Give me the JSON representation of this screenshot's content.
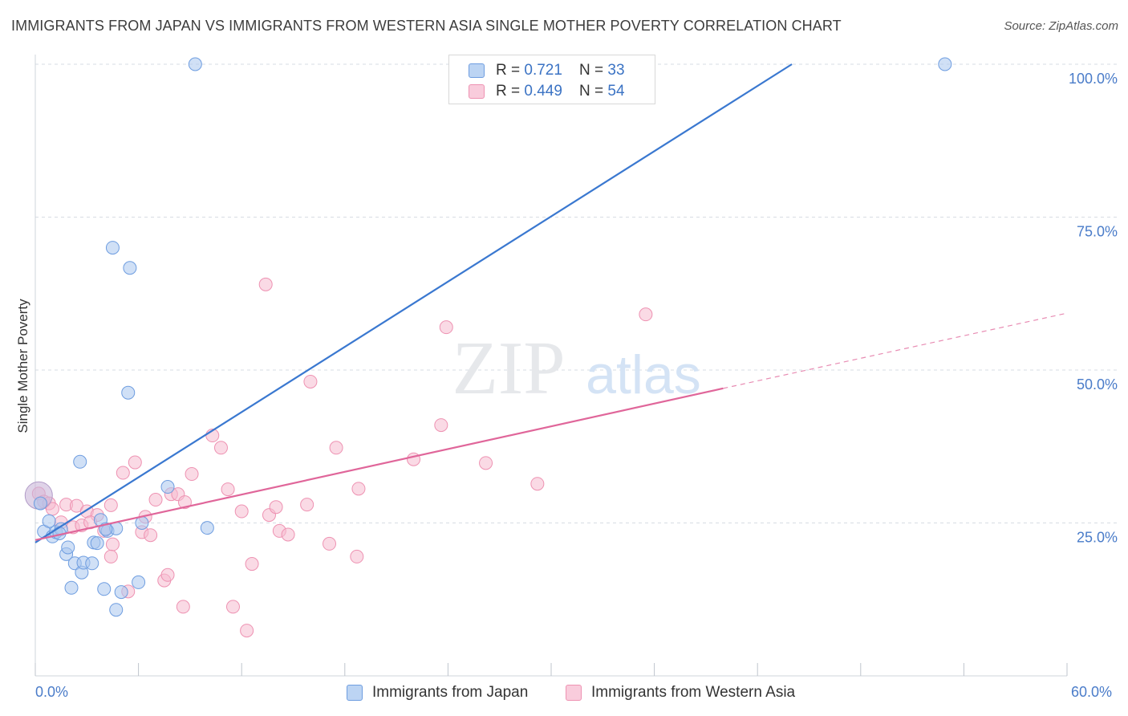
{
  "header": {
    "title": "IMMIGRANTS FROM JAPAN VS IMMIGRANTS FROM WESTERN ASIA SINGLE MOTHER POVERTY CORRELATION CHART",
    "source": "Source: ZipAtlas.com"
  },
  "watermark": {
    "zip": "ZIP",
    "atlas": "atlas"
  },
  "legend": {
    "rows": [
      {
        "r_label": "R = ",
        "r_value": "0.721",
        "n_label": "N = ",
        "n_value": "33"
      },
      {
        "r_label": "R = ",
        "r_value": "0.449",
        "n_label": "N = ",
        "n_value": "54"
      }
    ]
  },
  "colors": {
    "series1_fill": "#a9c7ef",
    "series1_stroke": "#6e9de0",
    "series1_line": "#3a78d0",
    "series2_fill": "#f6bcd0",
    "series2_stroke": "#ee92b2",
    "series2_line": "#e0669a",
    "grid": "#d7dce3",
    "tick_text": "#4a7cc9"
  },
  "chart_data": {
    "type": "scatter",
    "title": "IMMIGRANTS FROM JAPAN VS IMMIGRANTS FROM WESTERN ASIA SINGLE MOTHER POVERTY CORRELATION CHART",
    "xlabel": "",
    "ylabel": "Single Mother Poverty",
    "xlim": [
      0,
      60
    ],
    "ylim": [
      0,
      100
    ],
    "x_tick_labels": [
      "0.0%",
      "60.0%"
    ],
    "y_ticks": [
      25,
      50,
      75,
      100
    ],
    "y_tick_labels": [
      "25.0%",
      "50.0%",
      "75.0%",
      "100.0%"
    ],
    "grid": true,
    "series": [
      {
        "name": "Immigrants from Japan",
        "R": 0.721,
        "N": 33,
        "trend": {
          "x0": 0,
          "y0": 21.8,
          "x1": 44,
          "y1": 100
        },
        "points": [
          {
            "x": 0.3,
            "y": 28.2
          },
          {
            "x": 0.5,
            "y": 23.6
          },
          {
            "x": 0.8,
            "y": 25.3
          },
          {
            "x": 1.0,
            "y": 22.8
          },
          {
            "x": 1.2,
            "y": 23.5
          },
          {
            "x": 1.5,
            "y": 24.0
          },
          {
            "x": 1.8,
            "y": 19.9
          },
          {
            "x": 1.9,
            "y": 21.0
          },
          {
            "x": 2.3,
            "y": 18.4
          },
          {
            "x": 2.7,
            "y": 16.9
          },
          {
            "x": 2.8,
            "y": 18.5
          },
          {
            "x": 3.3,
            "y": 18.4
          },
          {
            "x": 2.1,
            "y": 14.4
          },
          {
            "x": 2.6,
            "y": 35.0
          },
          {
            "x": 3.4,
            "y": 21.8
          },
          {
            "x": 3.6,
            "y": 21.7
          },
          {
            "x": 3.8,
            "y": 25.5
          },
          {
            "x": 4.2,
            "y": 23.7
          },
          {
            "x": 4.0,
            "y": 14.2
          },
          {
            "x": 4.7,
            "y": 24.1
          },
          {
            "x": 5.0,
            "y": 13.7
          },
          {
            "x": 4.7,
            "y": 10.8
          },
          {
            "x": 5.4,
            "y": 46.3
          },
          {
            "x": 4.5,
            "y": 70.0
          },
          {
            "x": 5.5,
            "y": 66.7
          },
          {
            "x": 6.0,
            "y": 15.3
          },
          {
            "x": 6.2,
            "y": 25.0
          },
          {
            "x": 7.7,
            "y": 30.9
          },
          {
            "x": 9.3,
            "y": 100.0
          },
          {
            "x": 10.0,
            "y": 24.2
          },
          {
            "x": 52.9,
            "y": 100.0
          },
          {
            "x": 4.1,
            "y": 24.0
          },
          {
            "x": 1.4,
            "y": 23.3
          }
        ]
      },
      {
        "name": "Immigrants from Western Asia",
        "R": 0.449,
        "N": 54,
        "trend": {
          "x0": 0,
          "y0": 22.2,
          "x1": 40,
          "y1": 47.0,
          "dashed_x1": 60,
          "dashed_y1": 59.3
        },
        "points": [
          {
            "x": 0.2,
            "y": 29.8
          },
          {
            "x": 0.5,
            "y": 28.5
          },
          {
            "x": 0.8,
            "y": 28.2
          },
          {
            "x": 1.0,
            "y": 27.3
          },
          {
            "x": 1.5,
            "y": 25.1
          },
          {
            "x": 1.8,
            "y": 28.0
          },
          {
            "x": 2.2,
            "y": 24.3
          },
          {
            "x": 2.4,
            "y": 27.8
          },
          {
            "x": 2.7,
            "y": 24.6
          },
          {
            "x": 3.0,
            "y": 26.9
          },
          {
            "x": 3.6,
            "y": 26.3
          },
          {
            "x": 3.2,
            "y": 25.1
          },
          {
            "x": 4.0,
            "y": 23.7
          },
          {
            "x": 4.4,
            "y": 27.9
          },
          {
            "x": 4.5,
            "y": 21.5
          },
          {
            "x": 4.4,
            "y": 19.5
          },
          {
            "x": 5.1,
            "y": 33.2
          },
          {
            "x": 5.8,
            "y": 34.9
          },
          {
            "x": 6.2,
            "y": 23.5
          },
          {
            "x": 6.4,
            "y": 26.0
          },
          {
            "x": 6.7,
            "y": 23.0
          },
          {
            "x": 7.0,
            "y": 28.8
          },
          {
            "x": 7.5,
            "y": 15.6
          },
          {
            "x": 7.7,
            "y": 16.5
          },
          {
            "x": 7.9,
            "y": 29.7
          },
          {
            "x": 8.3,
            "y": 29.7
          },
          {
            "x": 8.7,
            "y": 28.4
          },
          {
            "x": 9.1,
            "y": 33.0
          },
          {
            "x": 8.6,
            "y": 11.3
          },
          {
            "x": 10.3,
            "y": 39.3
          },
          {
            "x": 10.8,
            "y": 37.3
          },
          {
            "x": 11.2,
            "y": 30.5
          },
          {
            "x": 11.5,
            "y": 11.3
          },
          {
            "x": 12.0,
            "y": 26.9
          },
          {
            "x": 12.6,
            "y": 18.3
          },
          {
            "x": 12.3,
            "y": 7.4
          },
          {
            "x": 13.4,
            "y": 64.0
          },
          {
            "x": 13.6,
            "y": 26.3
          },
          {
            "x": 14.0,
            "y": 27.6
          },
          {
            "x": 14.2,
            "y": 23.7
          },
          {
            "x": 14.7,
            "y": 23.1
          },
          {
            "x": 16.0,
            "y": 48.1
          },
          {
            "x": 15.8,
            "y": 28.0
          },
          {
            "x": 17.1,
            "y": 21.6
          },
          {
            "x": 17.5,
            "y": 37.3
          },
          {
            "x": 18.8,
            "y": 30.6
          },
          {
            "x": 18.7,
            "y": 19.5
          },
          {
            "x": 22.0,
            "y": 35.4
          },
          {
            "x": 23.6,
            "y": 41.0
          },
          {
            "x": 23.9,
            "y": 57.0
          },
          {
            "x": 26.2,
            "y": 34.8
          },
          {
            "x": 29.2,
            "y": 31.4
          },
          {
            "x": 35.5,
            "y": 59.1
          },
          {
            "x": 5.4,
            "y": 13.8
          }
        ]
      }
    ]
  },
  "axes": {
    "y_tick_labels": [
      "100.0%",
      "75.0%",
      "50.0%",
      "25.0%"
    ],
    "x_left": "0.0%",
    "x_right": "60.0%"
  }
}
